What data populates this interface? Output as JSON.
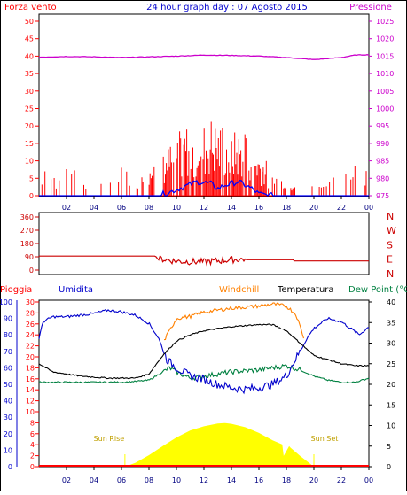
{
  "header": {
    "left_label": "Forza vento",
    "title": "24 hour graph day : 07 Agosto 2015",
    "right_label": "Pressione"
  },
  "colors": {
    "wind": "#ff0000",
    "gust": "#ff0000",
    "avg_wind": "#0000ff",
    "pressure": "#cc00cc",
    "title": "#0000cc",
    "direction": "#cc0000",
    "rain": "#ff0000",
    "humidity": "#0000cc",
    "windchill": "#ff8000",
    "temperature": "#000000",
    "dewpoint": "#008040",
    "sun": "#ffff00",
    "sun_label": "#c0a000"
  },
  "chart_data": [
    {
      "type": "line",
      "name": "wind_pressure",
      "xlabel": "",
      "ylabel": "",
      "x_ticks": [
        "02",
        "04",
        "06",
        "08",
        "10",
        "12",
        "14",
        "16",
        "18",
        "20",
        "22",
        "00"
      ],
      "y_left_ticks": [
        0,
        5,
        10,
        15,
        20,
        25,
        30,
        35,
        40,
        45,
        50
      ],
      "y_right_ticks": [
        975,
        980,
        985,
        990,
        995,
        1000,
        1005,
        1010,
        1015,
        1020,
        1025
      ],
      "ylim_left": [
        0,
        50
      ],
      "ylim_right": [
        975,
        1025
      ],
      "pressure": {
        "x": [
          0,
          2,
          4,
          6,
          8,
          10,
          12,
          14,
          16,
          18,
          20,
          22,
          23,
          24
        ],
        "y": [
          1014.7,
          1014.9,
          1014.8,
          1014.6,
          1014.8,
          1015.0,
          1015.3,
          1015.2,
          1015.0,
          1014.6,
          1014.0,
          1014.6,
          1015.3,
          1015.4
        ]
      },
      "avg_wind": {
        "x": [
          0,
          8.5,
          9.5,
          10.5,
          11.5,
          12.5,
          13.0,
          13.5,
          14.5,
          15.5,
          16.0,
          17.0,
          24
        ],
        "y": [
          0,
          0,
          1,
          2.5,
          4,
          3.5,
          2,
          3,
          4,
          2,
          0.5,
          0,
          0
        ]
      },
      "gust_profile": {
        "x": [
          0,
          5,
          8,
          9,
          10,
          11,
          12,
          12.5,
          13,
          14,
          15,
          16,
          17,
          18,
          21,
          23,
          24
        ],
        "y": [
          7,
          7,
          8,
          11,
          16,
          20,
          19,
          21,
          19,
          17,
          17,
          12,
          7,
          4,
          4,
          8,
          8
        ]
      }
    },
    {
      "type": "line",
      "name": "wind_direction",
      "y_ticks": [
        "360",
        "270",
        "180",
        "90",
        "0"
      ],
      "direction_labels": [
        "N",
        "W",
        "S",
        "E",
        "N"
      ],
      "ylim": [
        0,
        360
      ],
      "direction": {
        "x": [
          0,
          8.5,
          8.55,
          10,
          12,
          14,
          15,
          15.05,
          18.5,
          18.55,
          24
        ],
        "y": [
          95,
          95,
          80,
          60,
          55,
          70,
          75,
          70,
          70,
          62,
          62
        ]
      }
    },
    {
      "type": "line",
      "name": "temp_humidity_rain",
      "legend": [
        "Pioggia",
        "Umidita",
        "Windchill",
        "Temperatura",
        "Dew Point (°C"
      ],
      "y_humidity_ticks": [
        0,
        10,
        20,
        30,
        40,
        50,
        60,
        70,
        80,
        90,
        100
      ],
      "y_rain_ticks": [
        0,
        2,
        4,
        6,
        8,
        10,
        12,
        14,
        16,
        18,
        20,
        22,
        24,
        26,
        28,
        30
      ],
      "y_temp_ticks": [
        0,
        5,
        10,
        15,
        20,
        25,
        30,
        35,
        40
      ],
      "ylim_temp": [
        0,
        40
      ],
      "ylim_humidity": [
        0,
        100
      ],
      "sun_rise_label": "Sun Rise",
      "sun_set_label": "Sun Set",
      "sunrise_hour": 6.25,
      "sunset_hour": 20.0,
      "temperature": {
        "x": [
          0,
          1,
          3,
          5,
          7,
          8,
          9,
          10,
          11,
          12,
          14,
          16,
          17,
          18,
          19,
          20,
          21,
          22,
          23,
          24
        ],
        "y": [
          25.0,
          23.0,
          22.0,
          21.5,
          21.5,
          22.5,
          27.0,
          30.5,
          32.0,
          33.0,
          34.0,
          34.5,
          34.5,
          33.0,
          30.0,
          27.0,
          26.0,
          25.0,
          24.5,
          24.5
        ]
      },
      "windchill": {
        "x": [
          0,
          8,
          9,
          10,
          11,
          12,
          14,
          16,
          17,
          18,
          18.7,
          19.3,
          20,
          24
        ],
        "y": [
          null,
          null,
          30.0,
          36.0,
          36.5,
          37.5,
          38.5,
          39.0,
          39.5,
          39.0,
          37.0,
          31.0,
          null,
          null
        ]
      },
      "humidity": {
        "x": [
          0,
          0.3,
          1,
          2,
          3,
          4,
          5,
          6,
          7,
          8,
          8.7,
          9.3,
          10,
          11,
          12,
          13,
          14,
          15,
          16,
          17,
          18,
          18.5,
          19,
          19.5,
          20,
          21,
          22,
          23,
          23.3,
          24
        ],
        "y": [
          78,
          88,
          91,
          91,
          92,
          93,
          95,
          94,
          92,
          87,
          78,
          65,
          60,
          55,
          53,
          50,
          48,
          47,
          48,
          50,
          55,
          63,
          70,
          78,
          84,
          90,
          88,
          82,
          80,
          85
        ]
      },
      "dewpoint": {
        "x": [
          0,
          2,
          4,
          6,
          7,
          8,
          9,
          9.5,
          10,
          11,
          12,
          14,
          16,
          17,
          18,
          19,
          20,
          21,
          22,
          23,
          24
        ],
        "y": [
          20.5,
          20.5,
          20.5,
          20.5,
          20.7,
          21.0,
          23.0,
          24.0,
          23.0,
          21.5,
          22.0,
          23.0,
          23.5,
          24.0,
          24.5,
          23.5,
          22.0,
          21.0,
          20.5,
          20.5,
          21.5
        ]
      },
      "solar": {
        "x": [
          6.25,
          7,
          8,
          9,
          10,
          11,
          12,
          13,
          13.5,
          14,
          15,
          16,
          17,
          17.7,
          17.8,
          18.2,
          18.3,
          19,
          20
        ],
        "y": [
          0.0,
          0.9,
          2.8,
          5.0,
          7.1,
          8.8,
          9.8,
          10.5,
          10.6,
          10.4,
          9.6,
          8.2,
          6.4,
          5.4,
          2.6,
          5.0,
          4.6,
          2.6,
          0.0
        ]
      },
      "rain": {
        "x": [
          0,
          24
        ],
        "y": [
          0,
          0
        ]
      }
    }
  ]
}
